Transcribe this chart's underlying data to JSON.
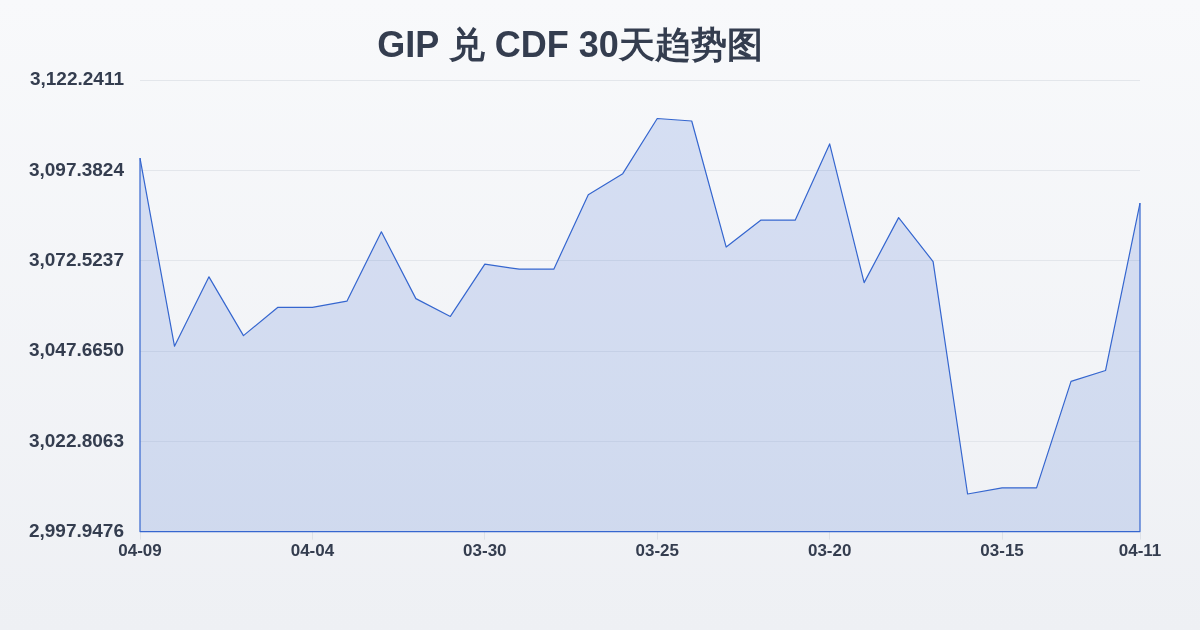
{
  "chart_data": {
    "type": "area",
    "title": "GIP 兑 CDF 30天趋势图",
    "categories": [
      "04-09",
      null,
      null,
      null,
      null,
      "04-04",
      null,
      null,
      null,
      null,
      "03-30",
      null,
      null,
      null,
      null,
      "03-25",
      null,
      null,
      null,
      null,
      "03-20",
      null,
      null,
      null,
      null,
      "03-15",
      null,
      null,
      null,
      "04-11"
    ],
    "values": [
      3100.8,
      3049.0,
      3068.1,
      3051.9,
      3059.7,
      3059.7,
      3061.4,
      3080.5,
      3062.1,
      3057.2,
      3071.6,
      3070.2,
      3070.2,
      3090.7,
      3096.5,
      3111.7,
      3111.0,
      3076.3,
      3083.7,
      3083.7,
      3104.7,
      3066.5,
      3084.4,
      3072.3,
      3008.3,
      3010.0,
      3010.0,
      3039.3,
      3042.3,
      3088.4
    ],
    "color": "#3566cf",
    "ylim": [
      2997.9476,
      3122.2411
    ],
    "yticks": [
      {
        "value": 2997.9476,
        "label": "2,997.9476"
      },
      {
        "value": 3022.8063,
        "label": "3,022.8063"
      },
      {
        "value": 3047.665,
        "label": "3,047.6650"
      },
      {
        "value": 3072.5237,
        "label": "3,072.5237"
      },
      {
        "value": 3097.3824,
        "label": "3,097.3824"
      },
      {
        "value": 3122.2411,
        "label": "3,122.2411"
      }
    ],
    "grid": "y"
  }
}
